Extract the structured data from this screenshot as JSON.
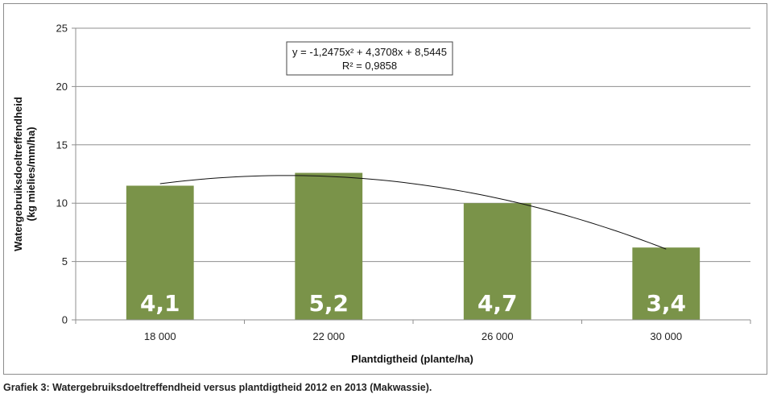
{
  "chart_data": {
    "type": "bar",
    "categories": [
      "18 000",
      "22 000",
      "26 000",
      "30 000"
    ],
    "values": [
      11.5,
      12.6,
      10.0,
      6.2
    ],
    "data_labels": [
      "4,1",
      "5,2",
      "4,7",
      "3,4"
    ],
    "xlabel": "Plantdigtheid (plante/ha)",
    "ylabel_lines": [
      "Watergebruiksdoeltreffendheid",
      "(kg mielies/mm/ha)"
    ],
    "ylim": [
      0,
      25
    ],
    "yticks": [
      0,
      5,
      10,
      15,
      20,
      25
    ],
    "grid": true,
    "bar_color": "#7a9349",
    "trendline": {
      "type": "polynomial",
      "coefficients": [
        -1.2475,
        4.3708,
        8.5445
      ],
      "equation": "y = -1,2475x² + 4,3708x + 8,5445",
      "r_squared": "R² = 0,9858"
    }
  },
  "caption": "Grafiek 3: Watergebruiksdoeltreffendheid versus plantdigtheid 2012 en 2013 (Makwassie)."
}
